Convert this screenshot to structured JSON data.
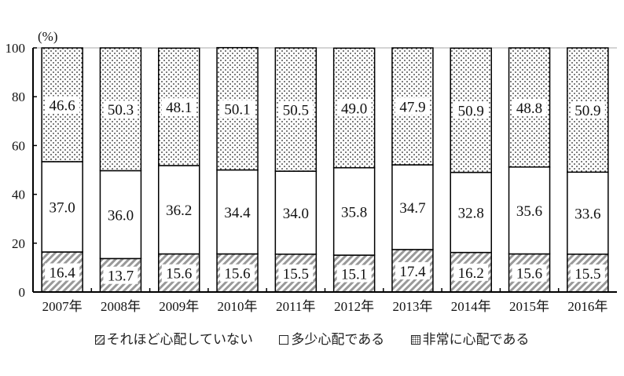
{
  "chart_data": {
    "type": "bar",
    "stacked": true,
    "ylabel": "(%)",
    "ylim": [
      0,
      100
    ],
    "yticks": [
      0,
      20,
      40,
      60,
      80,
      100
    ],
    "categories": [
      "2007年",
      "2008年",
      "2009年",
      "2010年",
      "2011年",
      "2012年",
      "2013年",
      "2014年",
      "2015年",
      "2016年"
    ],
    "series": [
      {
        "name": "それほど心配していない",
        "pattern": "hatch",
        "values": [
          16.4,
          13.7,
          15.6,
          15.6,
          15.5,
          15.1,
          17.4,
          16.2,
          15.6,
          15.5
        ]
      },
      {
        "name": "多少心配である",
        "pattern": "white",
        "values": [
          37.0,
          36.0,
          36.2,
          34.4,
          34.0,
          35.8,
          34.7,
          32.8,
          35.6,
          33.6
        ]
      },
      {
        "name": "非常に心配である",
        "pattern": "dots",
        "values": [
          46.6,
          50.3,
          48.1,
          50.1,
          50.5,
          49.0,
          47.9,
          50.9,
          48.8,
          50.9
        ]
      }
    ],
    "legend_position": "bottom"
  }
}
